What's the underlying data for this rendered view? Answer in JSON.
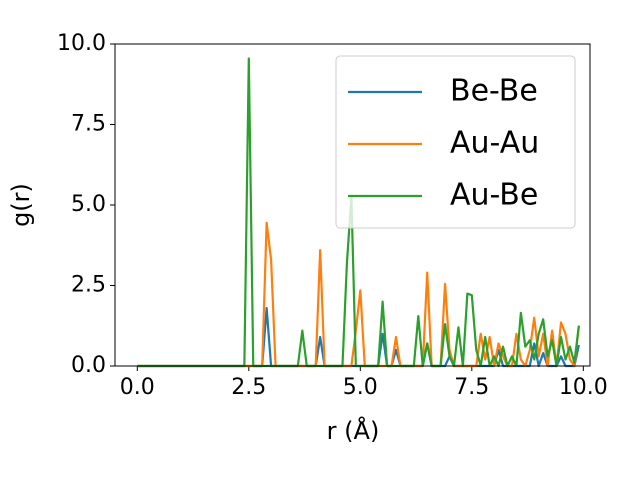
{
  "chart_data": {
    "type": "line",
    "xlabel": "r (Å)",
    "ylabel": "g(r)",
    "x": [
      0,
      0.1,
      0.2,
      0.3,
      0.4,
      0.5,
      0.6,
      0.7,
      0.8,
      0.9,
      1.0,
      1.1,
      1.2,
      1.3,
      1.4,
      1.5,
      1.6,
      1.7,
      1.8,
      1.9,
      2.0,
      2.1,
      2.2,
      2.3,
      2.4,
      2.5,
      2.6,
      2.7,
      2.8,
      2.9,
      3.0,
      3.1,
      3.2,
      3.3,
      3.4,
      3.5,
      3.6,
      3.7,
      3.8,
      3.9,
      4.0,
      4.1,
      4.2,
      4.3,
      4.4,
      4.5,
      4.6,
      4.7,
      4.8,
      4.9,
      5.0,
      5.1,
      5.2,
      5.3,
      5.4,
      5.5,
      5.6,
      5.7,
      5.8,
      5.9,
      6.0,
      6.1,
      6.2,
      6.3,
      6.4,
      6.5,
      6.6,
      6.7,
      6.8,
      6.9,
      7.0,
      7.1,
      7.2,
      7.3,
      7.4,
      7.5,
      7.6,
      7.7,
      7.8,
      7.9,
      8.0,
      8.1,
      8.2,
      8.3,
      8.4,
      8.5,
      8.6,
      8.7,
      8.8,
      8.9,
      9.0,
      9.1,
      9.2,
      9.3,
      9.4,
      9.5,
      9.6,
      9.7,
      9.8,
      9.9
    ],
    "series": [
      {
        "name": "Be-Be",
        "color": "#1f77b4",
        "values": [
          0,
          0,
          0,
          0,
          0,
          0,
          0,
          0,
          0,
          0,
          0,
          0,
          0,
          0,
          0,
          0,
          0,
          0,
          0,
          0,
          0,
          0,
          0,
          0,
          0,
          0,
          0,
          0,
          0,
          1.8,
          0,
          0,
          0,
          0,
          0,
          0,
          0,
          0,
          0,
          0,
          0,
          0.9,
          0,
          0,
          0,
          0,
          0,
          0,
          0,
          0,
          0,
          0,
          0,
          0,
          0,
          1.0,
          0,
          0,
          0.5,
          0,
          0,
          0,
          0,
          0,
          0,
          0.7,
          0,
          0,
          0,
          0,
          0.3,
          0,
          0,
          0,
          0,
          0,
          0,
          0,
          0,
          0,
          0,
          0.5,
          0,
          0,
          0,
          0,
          0,
          0,
          0,
          0.7,
          0,
          0.4,
          0,
          0,
          0,
          0.3,
          0,
          0,
          0,
          0.65
        ]
      },
      {
        "name": "Au-Au",
        "color": "#ff7f0e",
        "values": [
          0,
          0,
          0,
          0,
          0,
          0,
          0,
          0,
          0,
          0,
          0,
          0,
          0,
          0,
          0,
          0,
          0,
          0,
          0,
          0,
          0,
          0,
          0,
          0,
          0,
          0,
          0,
          0,
          0,
          4.45,
          3.3,
          0,
          0,
          0,
          0,
          0,
          0,
          0,
          0,
          0,
          0,
          3.6,
          0,
          0,
          0,
          0,
          0,
          0,
          0,
          1.1,
          2.35,
          0,
          0,
          0,
          0,
          0,
          0,
          0,
          0.9,
          0,
          0,
          0,
          0,
          0,
          0,
          2.9,
          0,
          0,
          0,
          2.55,
          0.5,
          0,
          0,
          0,
          0,
          0,
          0,
          1.0,
          0.2,
          0.9,
          0,
          0.7,
          0.3,
          0,
          0,
          1.0,
          0.2,
          0,
          0.5,
          1.5,
          0.3,
          1.0,
          0,
          1.1,
          0,
          1.35,
          1.0,
          0.2,
          0,
          1.25
        ]
      },
      {
        "name": "Au-Be",
        "color": "#2ca02c",
        "values": [
          0,
          0,
          0,
          0,
          0,
          0,
          0,
          0,
          0,
          0,
          0,
          0,
          0,
          0,
          0,
          0,
          0,
          0,
          0,
          0,
          0,
          0,
          0,
          0,
          0,
          9.55,
          0,
          0,
          0,
          0,
          0,
          0,
          0,
          0,
          0,
          0,
          0,
          1.1,
          0,
          0,
          0,
          0,
          0,
          0,
          0,
          0,
          0,
          3.2,
          5.25,
          0,
          0,
          0,
          0,
          0,
          0,
          2.0,
          0,
          0,
          0,
          0,
          0,
          0,
          0,
          1.55,
          0,
          0.7,
          0,
          0,
          0,
          1.3,
          0.3,
          0,
          1.2,
          0,
          2.25,
          2.2,
          0.5,
          0,
          0.9,
          0,
          0.3,
          0,
          0.6,
          0,
          0.3,
          0,
          1.65,
          0.6,
          0.8,
          0.2,
          1.0,
          1.45,
          0.3,
          0.8,
          0,
          0.9,
          0.2,
          0.6,
          0.1,
          1.25
        ]
      }
    ],
    "xlim": [
      -0.5,
      10.15
    ],
    "ylim": [
      0,
      10
    ],
    "xticks": [
      {
        "value": 0,
        "label": "0.0"
      },
      {
        "value": 2.5,
        "label": "2.5"
      },
      {
        "value": 5,
        "label": "5.0"
      },
      {
        "value": 7.5,
        "label": "7.5"
      },
      {
        "value": 10,
        "label": "10.0"
      }
    ],
    "yticks": [
      {
        "value": 0,
        "label": "0.0"
      },
      {
        "value": 2.5,
        "label": "2.5"
      },
      {
        "value": 5,
        "label": "5.0"
      },
      {
        "value": 7.5,
        "label": "7.5"
      },
      {
        "value": 10,
        "label": "10.0"
      }
    ],
    "legend": "upper right"
  }
}
